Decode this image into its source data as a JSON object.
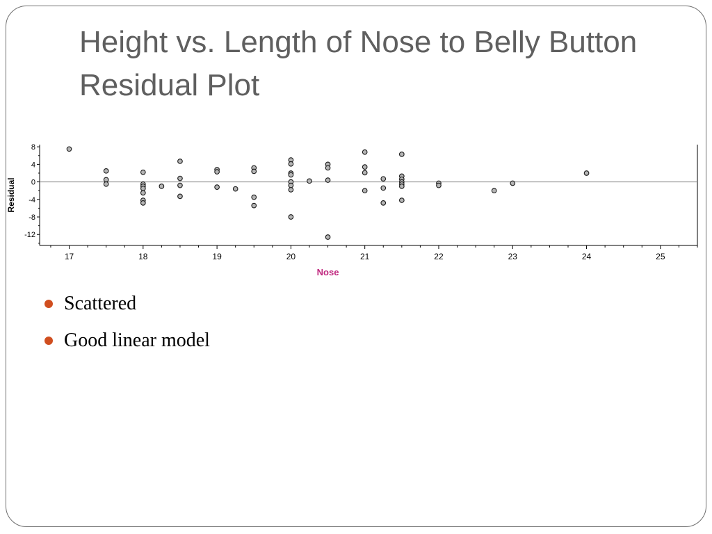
{
  "slide": {
    "title": "Height vs. Length of Nose to Belly Button Residual Plot",
    "bullets": [
      {
        "text": "Scattered"
      },
      {
        "text": "Good linear model"
      }
    ]
  },
  "colors": {
    "accent_bullet": "#d04e1f",
    "axis_label_x": "#c0287f",
    "frame": "#6f6f6f",
    "title": "#5f5f5f"
  },
  "chart_data": {
    "type": "scatter",
    "title": "",
    "xlabel": "Nose",
    "ylabel": "Residual",
    "xlim": [
      16.6,
      25.5
    ],
    "ylim": [
      -14.5,
      8.5
    ],
    "x_ticks": [
      17,
      18,
      19,
      20,
      21,
      22,
      23,
      24,
      25
    ],
    "y_ticks": [
      8,
      4,
      0,
      -4,
      -8,
      -12
    ],
    "reference_line_y": 0,
    "grid": false,
    "points": [
      {
        "x": 17,
        "y": 7.5
      },
      {
        "x": 17.5,
        "y": 2.5
      },
      {
        "x": 17.5,
        "y": 0.5
      },
      {
        "x": 17.5,
        "y": -0.5
      },
      {
        "x": 18,
        "y": 2.2
      },
      {
        "x": 18,
        "y": -0.5
      },
      {
        "x": 18,
        "y": -1
      },
      {
        "x": 18,
        "y": -1.5
      },
      {
        "x": 18,
        "y": -2.5
      },
      {
        "x": 18,
        "y": -4.2
      },
      {
        "x": 18,
        "y": -4.8
      },
      {
        "x": 18.25,
        "y": -1
      },
      {
        "x": 18.5,
        "y": 4.7
      },
      {
        "x": 18.5,
        "y": 0.8
      },
      {
        "x": 18.5,
        "y": -0.8
      },
      {
        "x": 18.5,
        "y": -3.3
      },
      {
        "x": 19,
        "y": 2.8
      },
      {
        "x": 19,
        "y": 2.3
      },
      {
        "x": 19,
        "y": -1.2
      },
      {
        "x": 19.25,
        "y": -1.6
      },
      {
        "x": 19.5,
        "y": 3.2
      },
      {
        "x": 19.5,
        "y": 2.4
      },
      {
        "x": 19.5,
        "y": -3.5
      },
      {
        "x": 19.5,
        "y": -5.4
      },
      {
        "x": 20,
        "y": 5.0
      },
      {
        "x": 20,
        "y": 4.1
      },
      {
        "x": 20,
        "y": 2.0
      },
      {
        "x": 20,
        "y": 1.6
      },
      {
        "x": 20,
        "y": 0
      },
      {
        "x": 20,
        "y": -0.8
      },
      {
        "x": 20,
        "y": -1.8
      },
      {
        "x": 20,
        "y": -8.0
      },
      {
        "x": 20.25,
        "y": 0.2
      },
      {
        "x": 20.5,
        "y": 4.0
      },
      {
        "x": 20.5,
        "y": 3.2
      },
      {
        "x": 20.5,
        "y": 0.4
      },
      {
        "x": 20.5,
        "y": -12.6
      },
      {
        "x": 21,
        "y": 6.8
      },
      {
        "x": 21,
        "y": 3.4
      },
      {
        "x": 21,
        "y": 2.1
      },
      {
        "x": 21,
        "y": -2.0
      },
      {
        "x": 21.25,
        "y": 0.7
      },
      {
        "x": 21.25,
        "y": -1.4
      },
      {
        "x": 21.25,
        "y": -4.8
      },
      {
        "x": 21.5,
        "y": 6.3
      },
      {
        "x": 21.5,
        "y": 1.3
      },
      {
        "x": 21.5,
        "y": 0.6
      },
      {
        "x": 21.5,
        "y": 0
      },
      {
        "x": 21.5,
        "y": -0.5
      },
      {
        "x": 21.5,
        "y": -1.0
      },
      {
        "x": 21.5,
        "y": -4.2
      },
      {
        "x": 22,
        "y": -0.3
      },
      {
        "x": 22,
        "y": -0.8
      },
      {
        "x": 22.75,
        "y": -2.0
      },
      {
        "x": 23,
        "y": -0.3
      },
      {
        "x": 24,
        "y": 2.0
      }
    ]
  }
}
